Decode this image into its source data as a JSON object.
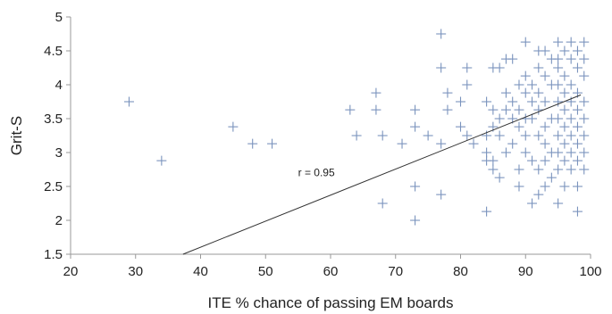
{
  "chart_data": {
    "type": "scatter",
    "title": "",
    "xlabel": "ITE % chance of passing EM boards",
    "ylabel": "Grit-S",
    "xlim": [
      20,
      100
    ],
    "ylim": [
      1.5,
      5
    ],
    "xticks": [
      20,
      30,
      40,
      50,
      60,
      70,
      80,
      90,
      100
    ],
    "yticks": [
      1.5,
      2,
      2.5,
      3,
      3.5,
      4,
      4.5,
      5
    ],
    "xtick_labels": [
      "20",
      "30",
      "40",
      "50",
      "60",
      "70",
      "80",
      "90",
      "100"
    ],
    "ytick_labels": [
      "1.5",
      "2",
      "2.5",
      "3",
      "3.5",
      "4",
      "4.5",
      "5"
    ],
    "grid": false,
    "legend": "none",
    "marker": "plus",
    "colors": {
      "marker": "#7a93bd",
      "trendline": "#333333",
      "axis": "#999999"
    },
    "points": [
      [
        29,
        3.75
      ],
      [
        34,
        2.88
      ],
      [
        45,
        3.38
      ],
      [
        48,
        3.13
      ],
      [
        51,
        3.13
      ],
      [
        63,
        3.63
      ],
      [
        64,
        3.25
      ],
      [
        67,
        3.88
      ],
      [
        67,
        3.63
      ],
      [
        68,
        3.25
      ],
      [
        68,
        2.25
      ],
      [
        71,
        3.13
      ],
      [
        73,
        3.63
      ],
      [
        73,
        3.38
      ],
      [
        73,
        2.5
      ],
      [
        73,
        2.0
      ],
      [
        75,
        3.25
      ],
      [
        77,
        4.75
      ],
      [
        77,
        4.25
      ],
      [
        77,
        3.13
      ],
      [
        77,
        2.38
      ],
      [
        78,
        3.88
      ],
      [
        78,
        3.63
      ],
      [
        80,
        3.75
      ],
      [
        80,
        3.38
      ],
      [
        81,
        4.25
      ],
      [
        81,
        4.0
      ],
      [
        81,
        3.25
      ],
      [
        82,
        3.13
      ],
      [
        84,
        3.75
      ],
      [
        84,
        3.25
      ],
      [
        84,
        3.0
      ],
      [
        84,
        2.88
      ],
      [
        84,
        2.13
      ],
      [
        85,
        4.25
      ],
      [
        85,
        3.63
      ],
      [
        85,
        3.38
      ],
      [
        85,
        2.88
      ],
      [
        85,
        2.75
      ],
      [
        86,
        4.25
      ],
      [
        86,
        3.5
      ],
      [
        86,
        3.25
      ],
      [
        86,
        2.63
      ],
      [
        87,
        4.38
      ],
      [
        87,
        3.88
      ],
      [
        87,
        3.63
      ],
      [
        87,
        3.0
      ],
      [
        88,
        4.38
      ],
      [
        88,
        3.75
      ],
      [
        88,
        3.5
      ],
      [
        88,
        3.13
      ],
      [
        89,
        4.0
      ],
      [
        89,
        3.63
      ],
      [
        89,
        3.38
      ],
      [
        89,
        2.75
      ],
      [
        89,
        2.5
      ],
      [
        90,
        4.63
      ],
      [
        90,
        4.13
      ],
      [
        90,
        3.88
      ],
      [
        90,
        3.5
      ],
      [
        90,
        3.25
      ],
      [
        90,
        3.0
      ],
      [
        91,
        4.0
      ],
      [
        91,
        3.75
      ],
      [
        91,
        3.5
      ],
      [
        91,
        2.88
      ],
      [
        91,
        2.25
      ],
      [
        92,
        4.5
      ],
      [
        92,
        4.25
      ],
      [
        92,
        3.88
      ],
      [
        92,
        3.63
      ],
      [
        92,
        3.25
      ],
      [
        92,
        2.75
      ],
      [
        92,
        2.38
      ],
      [
        93,
        4.5
      ],
      [
        93,
        4.13
      ],
      [
        93,
        3.75
      ],
      [
        93,
        3.38
      ],
      [
        93,
        3.13
      ],
      [
        93,
        2.88
      ],
      [
        93,
        2.5
      ],
      [
        94,
        4.38
      ],
      [
        94,
        4.0
      ],
      [
        94,
        3.5
      ],
      [
        94,
        3.0
      ],
      [
        94,
        2.63
      ],
      [
        95,
        4.63
      ],
      [
        95,
        4.38
      ],
      [
        95,
        4.25
      ],
      [
        95,
        4.0
      ],
      [
        95,
        3.75
      ],
      [
        95,
        3.5
      ],
      [
        95,
        3.25
      ],
      [
        95,
        3.0
      ],
      [
        95,
        2.75
      ],
      [
        95,
        2.25
      ],
      [
        96,
        4.5
      ],
      [
        96,
        4.13
      ],
      [
        96,
        3.88
      ],
      [
        96,
        3.63
      ],
      [
        96,
        3.38
      ],
      [
        96,
        3.13
      ],
      [
        96,
        2.88
      ],
      [
        96,
        2.5
      ],
      [
        97,
        4.63
      ],
      [
        97,
        4.38
      ],
      [
        97,
        4.0
      ],
      [
        97,
        3.75
      ],
      [
        97,
        3.5
      ],
      [
        97,
        3.25
      ],
      [
        97,
        3.0
      ],
      [
        97,
        2.75
      ],
      [
        98,
        4.5
      ],
      [
        98,
        4.25
      ],
      [
        98,
        3.88
      ],
      [
        98,
        3.63
      ],
      [
        98,
        3.38
      ],
      [
        98,
        3.13
      ],
      [
        98,
        2.88
      ],
      [
        98,
        2.5
      ],
      [
        98,
        2.13
      ],
      [
        99,
        4.63
      ],
      [
        99,
        4.38
      ],
      [
        99,
        4.13
      ],
      [
        99,
        3.75
      ],
      [
        99,
        3.5
      ],
      [
        99,
        3.25
      ],
      [
        99,
        3.0
      ],
      [
        99,
        2.75
      ]
    ],
    "trendline": {
      "x": [
        37.3,
        98.5
      ],
      "y": [
        1.5,
        3.85
      ]
    },
    "annotations": [
      {
        "text": "r = 0.95",
        "x": 55,
        "y": 2.65
      }
    ]
  }
}
